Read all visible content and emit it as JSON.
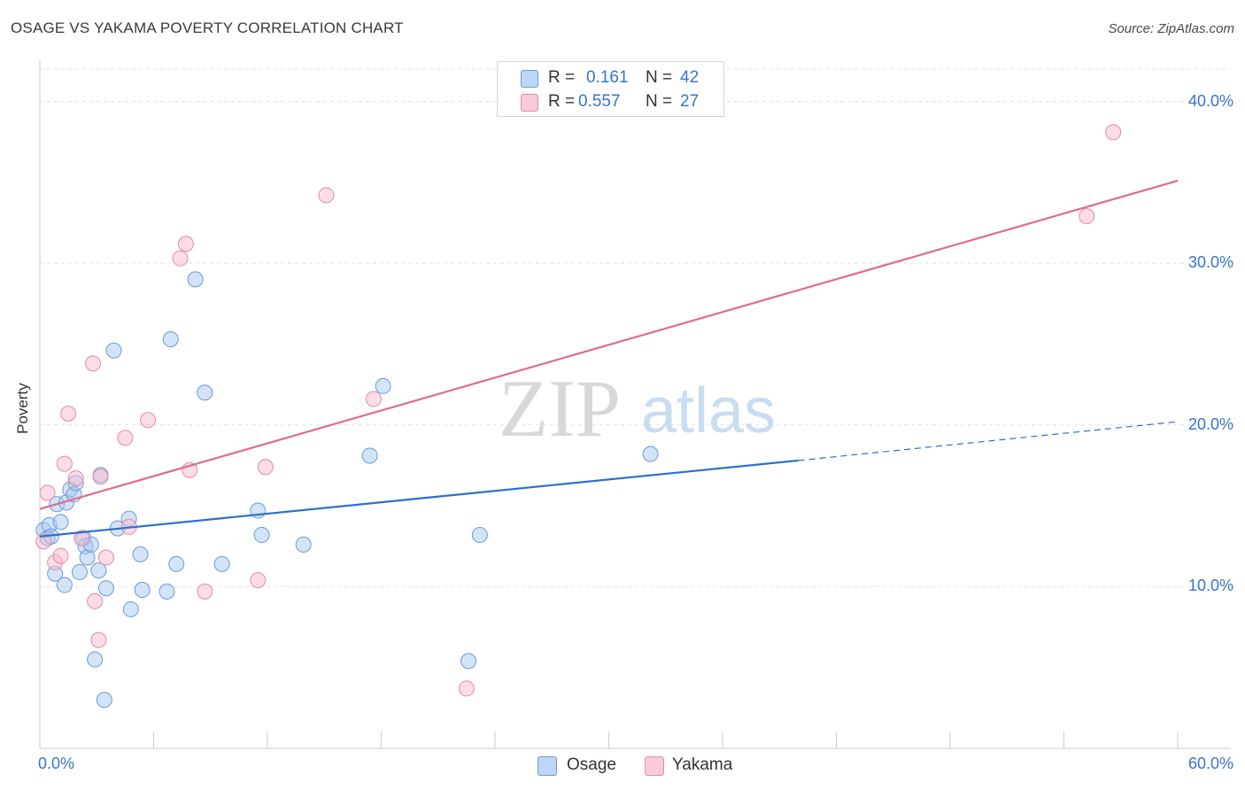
{
  "header": {
    "title": "OSAGE VS YAKAMA POVERTY CORRELATION CHART",
    "source": "Source: ZipAtlas.com"
  },
  "legend": {
    "rows": [
      {
        "r_label": "R =",
        "r_value": "0.161",
        "n_label": "N =",
        "n_value": "42"
      },
      {
        "r_label": "R =",
        "r_value": "0.557",
        "n_label": "N =",
        "n_value": "27"
      }
    ]
  },
  "bottom_legend": {
    "items": [
      {
        "label": "Osage"
      },
      {
        "label": "Yakama"
      }
    ]
  },
  "colors": {
    "osage_fill": "#a9c9f0",
    "osage_stroke": "#6a9ad8",
    "osage_line": "#2b6fce",
    "yakama_fill": "#f6bccd",
    "yakama_stroke": "#e58aa8",
    "yakama_line": "#e06a92",
    "tick_text": "#3a74c9",
    "grid": "#e2e2e2"
  },
  "watermark": {
    "zip": "ZIP",
    "atlas": "atlas"
  },
  "chart_data": {
    "type": "scatter",
    "title": "OSAGE VS YAKAMA POVERTY CORRELATION CHART",
    "xlabel": "",
    "ylabel": "Poverty",
    "xlim": [
      0,
      60
    ],
    "ylim": [
      0,
      42
    ],
    "x_tick_labels": [
      {
        "value": 0,
        "label": "0.0%"
      },
      {
        "value": 60,
        "label": "60.0%"
      }
    ],
    "y_tick_labels": [
      {
        "value": 10,
        "label": "10.0%"
      },
      {
        "value": 20,
        "label": "20.0%"
      },
      {
        "value": 30,
        "label": "30.0%"
      },
      {
        "value": 40,
        "label": "40.0%"
      }
    ],
    "x_minor_ticks": [
      0,
      6,
      12,
      18,
      24,
      30,
      36,
      42,
      48,
      54,
      60
    ],
    "grid": true,
    "series": [
      {
        "name": "Osage",
        "r": 0.161,
        "n": 42,
        "trend": {
          "x0": 0,
          "y0": 13.1,
          "x1": 40,
          "y1": 17.8,
          "dash_x1": 60,
          "dash_y1": 20.2
        },
        "points": [
          [
            0.2,
            13.5
          ],
          [
            0.4,
            13.0
          ],
          [
            0.5,
            13.8
          ],
          [
            0.6,
            13.1
          ],
          [
            0.8,
            10.8
          ],
          [
            0.9,
            15.1
          ],
          [
            1.1,
            14.0
          ],
          [
            1.3,
            10.1
          ],
          [
            1.4,
            15.2
          ],
          [
            1.6,
            16.0
          ],
          [
            1.8,
            15.7
          ],
          [
            1.9,
            16.4
          ],
          [
            2.1,
            10.9
          ],
          [
            2.3,
            13.0
          ],
          [
            2.4,
            12.5
          ],
          [
            2.5,
            11.8
          ],
          [
            2.7,
            12.6
          ],
          [
            2.9,
            5.5
          ],
          [
            3.1,
            11.0
          ],
          [
            3.2,
            16.9
          ],
          [
            3.4,
            3.0
          ],
          [
            3.5,
            9.9
          ],
          [
            3.9,
            24.6
          ],
          [
            4.1,
            13.6
          ],
          [
            4.7,
            14.2
          ],
          [
            4.8,
            8.6
          ],
          [
            5.3,
            12.0
          ],
          [
            5.4,
            9.8
          ],
          [
            6.7,
            9.7
          ],
          [
            6.9,
            25.3
          ],
          [
            7.2,
            11.4
          ],
          [
            8.2,
            29.0
          ],
          [
            8.7,
            22.0
          ],
          [
            9.6,
            11.4
          ],
          [
            11.5,
            14.7
          ],
          [
            11.7,
            13.2
          ],
          [
            13.9,
            12.6
          ],
          [
            17.4,
            18.1
          ],
          [
            18.1,
            22.4
          ],
          [
            22.6,
            5.4
          ],
          [
            23.2,
            13.2
          ],
          [
            32.2,
            18.2
          ]
        ]
      },
      {
        "name": "Yakama",
        "r": 0.557,
        "n": 27,
        "trend": {
          "x0": 0,
          "y0": 14.8,
          "x1": 60,
          "y1": 35.1
        },
        "points": [
          [
            0.2,
            12.8
          ],
          [
            0.4,
            15.8
          ],
          [
            0.8,
            11.5
          ],
          [
            1.1,
            11.9
          ],
          [
            1.3,
            17.6
          ],
          [
            1.5,
            20.7
          ],
          [
            1.9,
            16.7
          ],
          [
            2.2,
            13.0
          ],
          [
            2.8,
            23.8
          ],
          [
            2.9,
            9.1
          ],
          [
            3.1,
            6.7
          ],
          [
            3.2,
            16.8
          ],
          [
            3.5,
            11.8
          ],
          [
            4.5,
            19.2
          ],
          [
            4.7,
            13.7
          ],
          [
            5.7,
            20.3
          ],
          [
            7.4,
            30.3
          ],
          [
            7.7,
            31.2
          ],
          [
            7.9,
            17.2
          ],
          [
            8.7,
            9.7
          ],
          [
            11.5,
            10.4
          ],
          [
            11.9,
            17.4
          ],
          [
            15.1,
            34.2
          ],
          [
            17.6,
            21.6
          ],
          [
            22.5,
            3.7
          ],
          [
            55.2,
            32.9
          ],
          [
            56.6,
            38.1
          ]
        ]
      }
    ]
  }
}
